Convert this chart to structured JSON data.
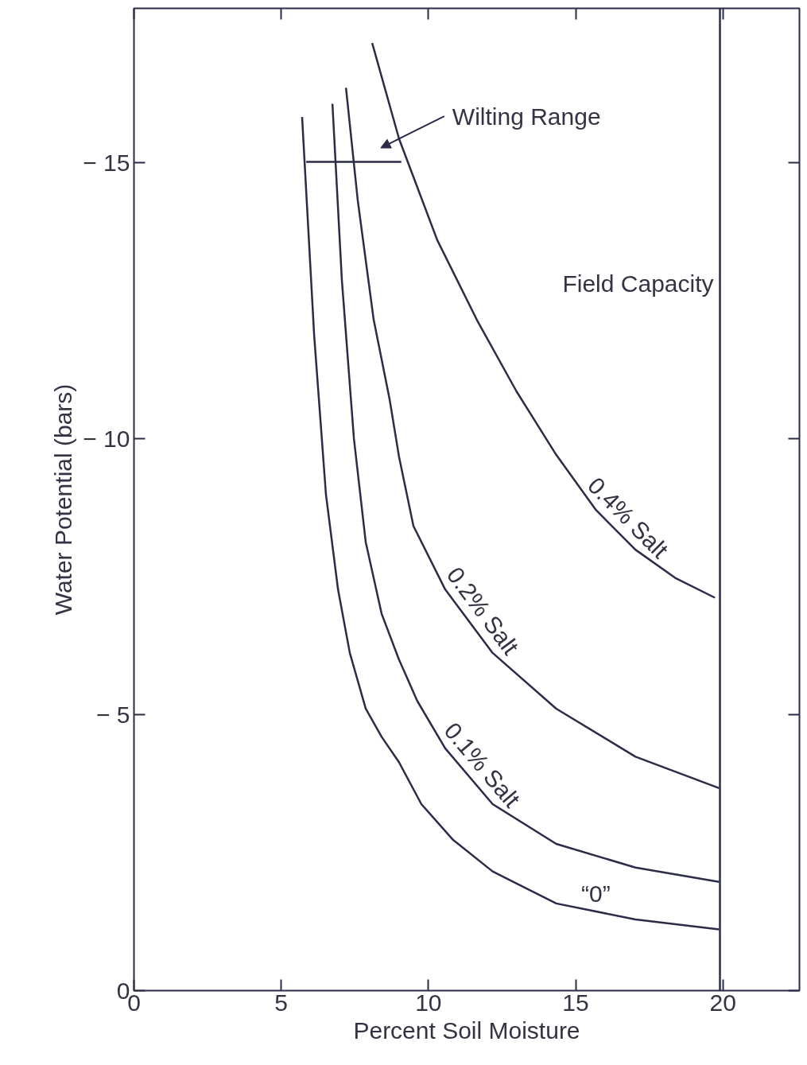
{
  "chart_data": {
    "type": "line",
    "xlabel": "Percent Soil Moisture",
    "ylabel": "Water Potential (bars)",
    "xlim": [
      0,
      22.6
    ],
    "ylim": [
      0,
      -17.8
    ],
    "xticks": [
      0,
      5,
      10,
      15,
      20
    ],
    "yticks": [
      0,
      {
        "value": -5,
        "label": "− 5"
      },
      {
        "value": -10,
        "label": "− 10"
      },
      {
        "value": -15,
        "label": "− 15"
      }
    ],
    "grid": false,
    "marker": "none",
    "line_style": "solid",
    "series": [
      {
        "name": "“0”",
        "color": "#2b2d48",
        "x": [
          5.71,
          6.12,
          6.52,
          6.93,
          7.33,
          7.87,
          8.41,
          9.0,
          9.76,
          10.84,
          12.18,
          14.34,
          17.03,
          19.87
        ],
        "values": [
          -15.83,
          -11.87,
          -8.99,
          -7.27,
          -6.12,
          -5.11,
          -4.6,
          -4.14,
          -3.38,
          -2.73,
          -2.16,
          -1.58,
          -1.29,
          -1.11
        ]
      },
      {
        "name": "0.1% Salt",
        "color": "#2b2d48",
        "x": [
          6.74,
          7.06,
          7.47,
          7.87,
          8.41,
          9.0,
          9.62,
          10.57,
          12.18,
          14.34,
          17.03,
          19.87
        ],
        "values": [
          -16.07,
          -12.88,
          -10.0,
          -8.13,
          -6.83,
          -6.0,
          -5.25,
          -4.39,
          -3.38,
          -2.66,
          -2.23,
          -1.97
        ]
      },
      {
        "name": "0.2% Salt",
        "color": "#2b2d48",
        "x": [
          7.2,
          7.6,
          8.14,
          8.68,
          9.0,
          9.49,
          10.57,
          12.18,
          14.34,
          17.03,
          19.87
        ],
        "values": [
          -16.36,
          -14.32,
          -12.16,
          -10.72,
          -9.68,
          -8.42,
          -7.27,
          -6.12,
          -5.11,
          -4.24,
          -3.67
        ]
      },
      {
        "name": "0.4% Salt",
        "color": "#2b2d48",
        "x": [
          8.09,
          9.0,
          10.3,
          11.64,
          12.99,
          14.34,
          15.69,
          17.03,
          18.38,
          19.73
        ],
        "values": [
          -17.17,
          -15.44,
          -13.6,
          -12.16,
          -10.86,
          -9.71,
          -8.71,
          -7.99,
          -7.48,
          -7.12
        ]
      },
      {
        "color": "#2b2d48",
        "x": [
          5.85,
          9.08
        ],
        "values": [
          -15.02,
          -15.02
        ]
      }
    ],
    "ref_lines": [
      {
        "axis": "x",
        "value": 19.9,
        "label": "Field Capacity",
        "color": "#2b2d48"
      }
    ],
    "annotations": [
      "Wilting Range"
    ]
  }
}
